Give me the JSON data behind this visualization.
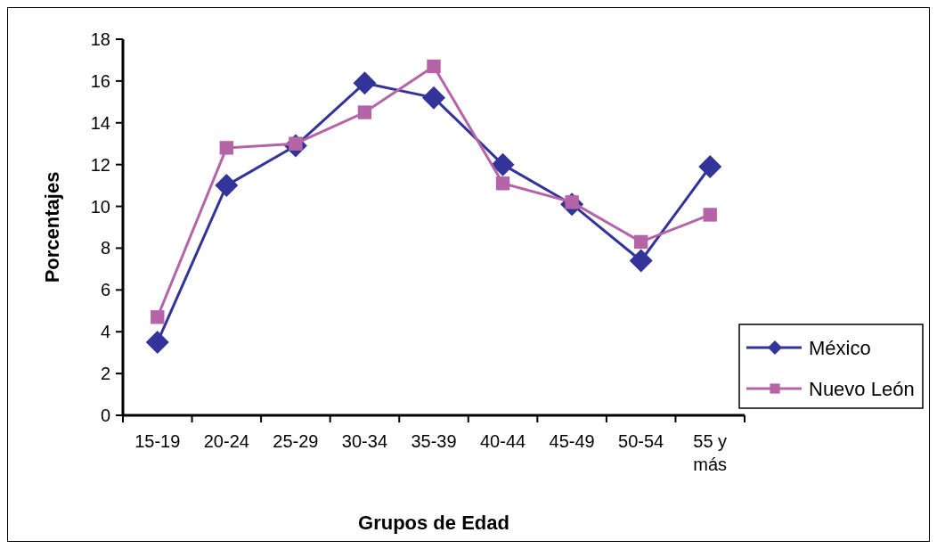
{
  "chart_data": {
    "type": "line",
    "xlabel": "Grupos de Edad",
    "ylabel": "Porcentajes",
    "categories": [
      "15-19",
      "20-24",
      "25-29",
      "30-34",
      "35-39",
      "40-44",
      "45-49",
      "50-54",
      "55 y más"
    ],
    "series": [
      {
        "name": "México",
        "color": "#333399",
        "marker": "diamond",
        "values": [
          3.5,
          11.0,
          12.9,
          15.9,
          15.2,
          12.0,
          10.1,
          7.4,
          11.9
        ]
      },
      {
        "name": "Nuevo León",
        "color": "#b565a7",
        "marker": "square",
        "values": [
          4.7,
          12.8,
          13.0,
          14.5,
          16.7,
          11.1,
          10.2,
          8.3,
          9.6
        ]
      }
    ],
    "ylim": [
      0,
      18
    ],
    "yticks": [
      0,
      2,
      4,
      6,
      8,
      10,
      12,
      14,
      16,
      18
    ],
    "grid": false,
    "legend": "right"
  }
}
